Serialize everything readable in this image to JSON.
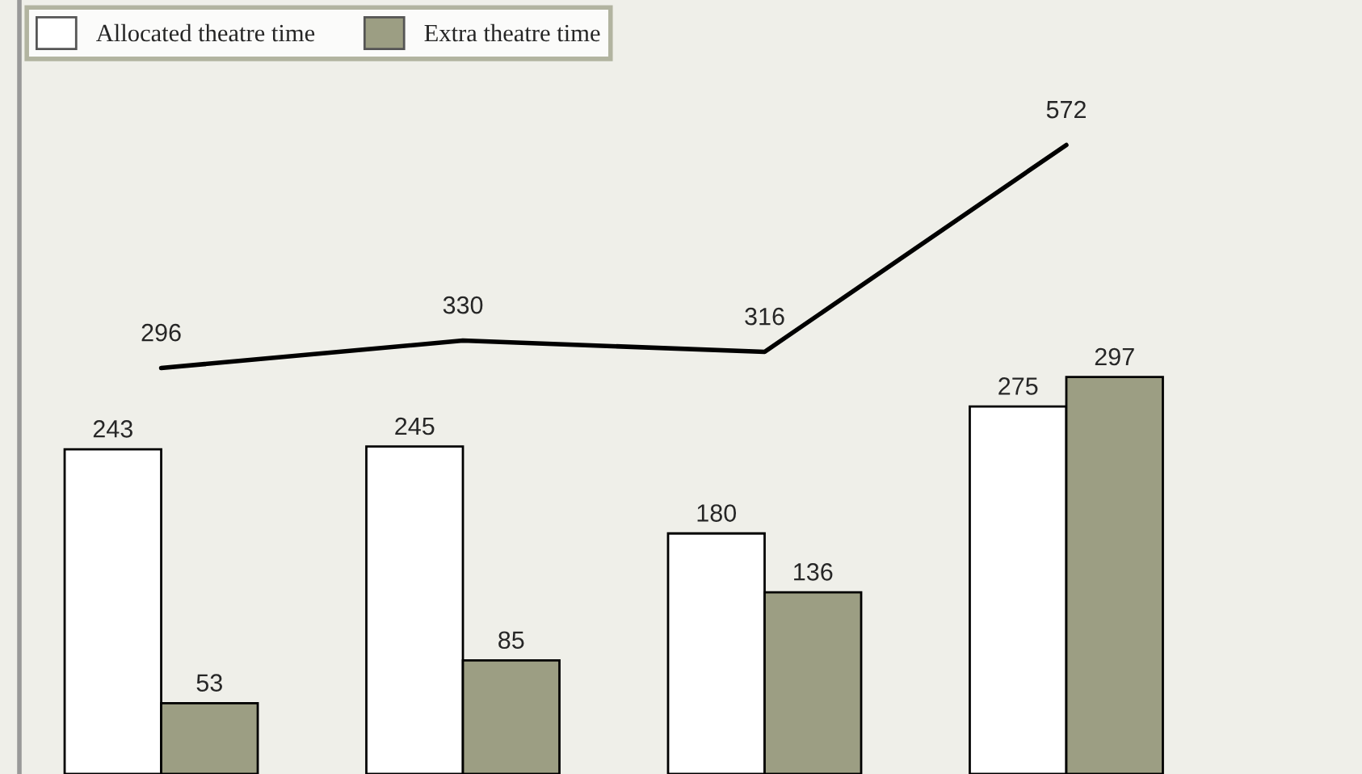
{
  "chart_data": [
    {
      "type": "bar",
      "categories": [
        null,
        null,
        null,
        null
      ],
      "series": [
        {
          "name": "Allocated theatre time",
          "color": "#ffffff",
          "values": [
            243,
            245,
            180,
            275
          ]
        },
        {
          "name": "Extra theatre time",
          "color": "#9c9e83",
          "values": [
            53,
            85,
            136,
            297
          ]
        }
      ],
      "data_labels": true,
      "legend": "top left"
    },
    {
      "type": "line",
      "categories": [
        null,
        null,
        null,
        null
      ],
      "series": [
        {
          "color": "#000000",
          "values": [
            296,
            330,
            316,
            572
          ]
        }
      ],
      "data_labels": true
    }
  ]
}
